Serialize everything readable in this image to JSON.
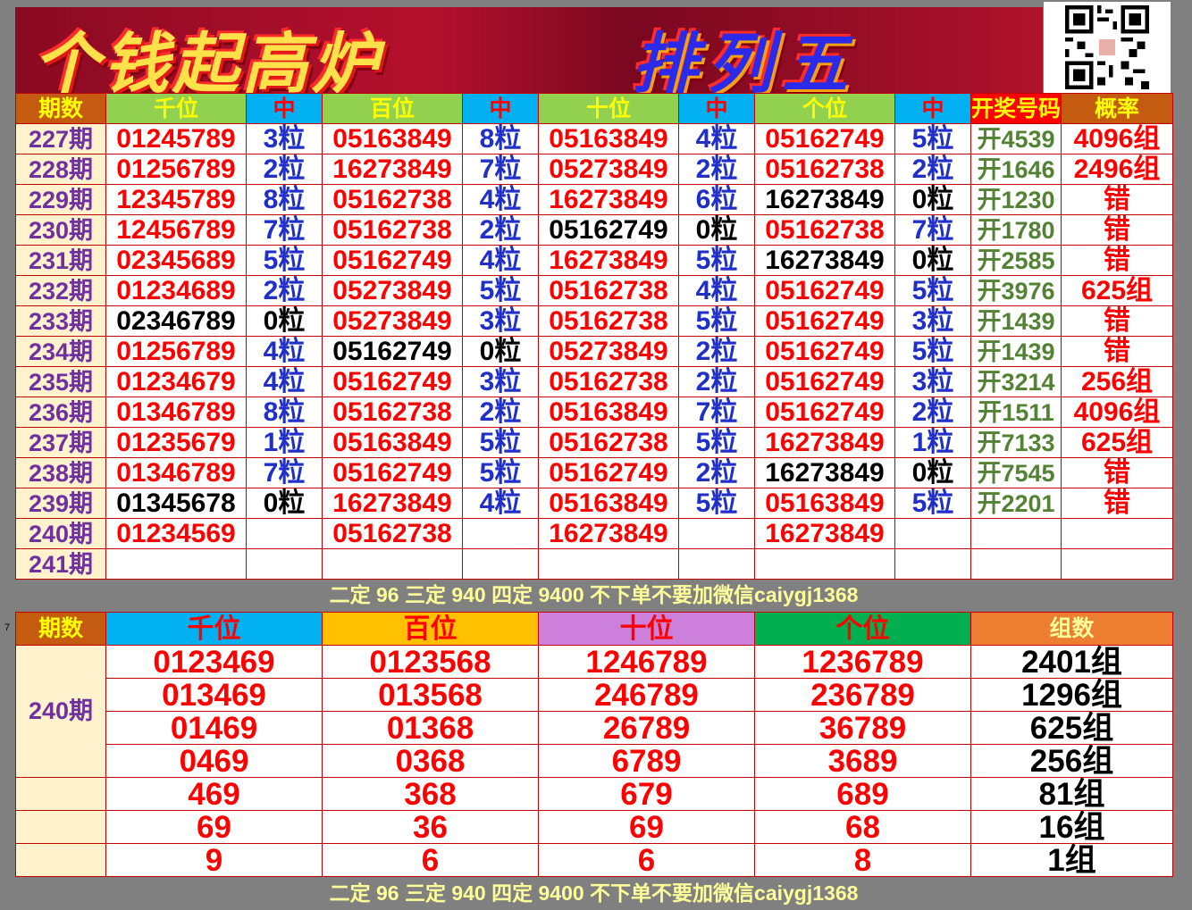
{
  "banner": {
    "title_left": "个钱起高炉",
    "title_right": "排列五"
  },
  "colors": {
    "period_header": "#c55a11",
    "pos_header": "#92d050",
    "hit_header": "#00b0f0",
    "draw_header": "#ff0000",
    "prob_header": "#c55a11",
    "period_bg": "#fff2cc",
    "number_red": "#ff0000",
    "hit_blue": "#1f2fc8",
    "draw_green": "#548235"
  },
  "table1": {
    "headers": [
      "期数",
      "千位",
      "中",
      "百位",
      "中",
      "十位",
      "中",
      "个位",
      "中",
      "开奖号码",
      "概率"
    ],
    "rows": [
      {
        "period": "227期",
        "cells": [
          [
            "01245789",
            "3粒"
          ],
          [
            "05163849",
            "8粒"
          ],
          [
            "05163849",
            "4粒"
          ],
          [
            "05162749",
            "5粒"
          ]
        ],
        "draw": "开4539",
        "prob": "4096组"
      },
      {
        "period": "228期",
        "cells": [
          [
            "01256789",
            "2粒"
          ],
          [
            "16273849",
            "7粒"
          ],
          [
            "05273849",
            "2粒"
          ],
          [
            "05162738",
            "2粒"
          ]
        ],
        "draw": "开1646",
        "prob": "2496组"
      },
      {
        "period": "229期",
        "cells": [
          [
            "12345789",
            "8粒"
          ],
          [
            "05162738",
            "4粒"
          ],
          [
            "16273849",
            "6粒"
          ],
          [
            "16273849",
            "0粒"
          ]
        ],
        "draw": "开1230",
        "prob": "错"
      },
      {
        "period": "230期",
        "cells": [
          [
            "12456789",
            "7粒"
          ],
          [
            "05162738",
            "2粒"
          ],
          [
            "05162749",
            "0粒"
          ],
          [
            "05162738",
            "7粒"
          ]
        ],
        "draw": "开1780",
        "prob": "错"
      },
      {
        "period": "231期",
        "cells": [
          [
            "02345689",
            "5粒"
          ],
          [
            "05162749",
            "4粒"
          ],
          [
            "16273849",
            "5粒"
          ],
          [
            "16273849",
            "0粒"
          ]
        ],
        "draw": "开2585",
        "prob": "错"
      },
      {
        "period": "232期",
        "cells": [
          [
            "01234689",
            "2粒"
          ],
          [
            "05273849",
            "5粒"
          ],
          [
            "05162738",
            "4粒"
          ],
          [
            "05162749",
            "5粒"
          ]
        ],
        "draw": "开3976",
        "prob": "625组"
      },
      {
        "period": "233期",
        "cells": [
          [
            "02346789",
            "0粒"
          ],
          [
            "05273849",
            "3粒"
          ],
          [
            "05162738",
            "5粒"
          ],
          [
            "05162749",
            "3粒"
          ]
        ],
        "draw": "开1439",
        "prob": "错"
      },
      {
        "period": "234期",
        "cells": [
          [
            "01256789",
            "4粒"
          ],
          [
            "05162749",
            "0粒"
          ],
          [
            "05273849",
            "2粒"
          ],
          [
            "05162749",
            "5粒"
          ]
        ],
        "draw": "开1439",
        "prob": "错"
      },
      {
        "period": "235期",
        "cells": [
          [
            "01234679",
            "4粒"
          ],
          [
            "05162749",
            "3粒"
          ],
          [
            "05162738",
            "2粒"
          ],
          [
            "05162749",
            "3粒"
          ]
        ],
        "draw": "开3214",
        "prob": "256组"
      },
      {
        "period": "236期",
        "cells": [
          [
            "01346789",
            "8粒"
          ],
          [
            "05162738",
            "2粒"
          ],
          [
            "05163849",
            "7粒"
          ],
          [
            "05162749",
            "2粒"
          ]
        ],
        "draw": "开1511",
        "prob": "4096组"
      },
      {
        "period": "237期",
        "cells": [
          [
            "01235679",
            "1粒"
          ],
          [
            "05163849",
            "5粒"
          ],
          [
            "05162738",
            "5粒"
          ],
          [
            "16273849",
            "1粒"
          ]
        ],
        "draw": "开7133",
        "prob": "625组"
      },
      {
        "period": "238期",
        "cells": [
          [
            "01346789",
            "7粒"
          ],
          [
            "05162749",
            "5粒"
          ],
          [
            "05162749",
            "2粒"
          ],
          [
            "16273849",
            "0粒"
          ]
        ],
        "draw": "开7545",
        "prob": "错"
      },
      {
        "period": "239期",
        "cells": [
          [
            "01345678",
            "0粒"
          ],
          [
            "16273849",
            "4粒"
          ],
          [
            "05163849",
            "5粒"
          ],
          [
            "05163849",
            "5粒"
          ]
        ],
        "draw": "开2201",
        "prob": "错"
      },
      {
        "period": "240期",
        "cells": [
          [
            "01234569",
            ""
          ],
          [
            "05162738",
            ""
          ],
          [
            "16273849",
            ""
          ],
          [
            "16273849",
            ""
          ]
        ],
        "draw": "",
        "prob": ""
      },
      {
        "period": "241期",
        "cells": [
          [
            "",
            ""
          ],
          [
            "",
            ""
          ],
          [
            "",
            ""
          ],
          [
            "",
            ""
          ]
        ],
        "draw": "",
        "prob": ""
      }
    ]
  },
  "ad_text": "二定 96 三定 940 四定 9400 不下单不要加微信caiygj1368",
  "row_marker": "7",
  "table2": {
    "period": "240期",
    "headers": [
      "期数",
      "千位",
      "百位",
      "十位",
      "个位",
      "组数"
    ],
    "header_colors": [
      "#c55a11",
      "#00b0f0",
      "#ffc000",
      "#cc7fdb",
      "#00b050",
      "#ed7d31"
    ],
    "rows": [
      [
        "0123469",
        "0123568",
        "1246789",
        "1236789",
        "2401组"
      ],
      [
        "013469",
        "013568",
        "246789",
        "236789",
        "1296组"
      ],
      [
        "01469",
        "01368",
        "26789",
        "36789",
        "625组"
      ],
      [
        "0469",
        "0368",
        "6789",
        "3689",
        "256组"
      ],
      [
        "469",
        "368",
        "679",
        "689",
        "81组"
      ],
      [
        "69",
        "36",
        "69",
        "68",
        "16组"
      ],
      [
        "9",
        "6",
        "6",
        "8",
        "1组"
      ]
    ]
  }
}
